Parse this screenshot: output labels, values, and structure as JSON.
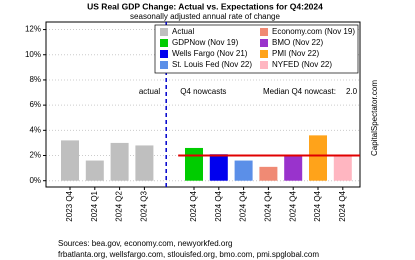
{
  "chart_data": {
    "type": "bar",
    "title": "US Real GDP Change: Actual vs. Expectations for Q4:2024",
    "subtitle": "seasonally adjusted annual rate of change",
    "categories": [
      "2023 Q4",
      "2024 Q1",
      "2024 Q2",
      "2024 Q3",
      null,
      "2024 Q4",
      "2024 Q4",
      "2024 Q4",
      "2024 Q4",
      "2024 Q4",
      "2024 Q4",
      "2024 Q4"
    ],
    "series": [
      {
        "name": "Actual",
        "color": "#bfbfbf",
        "values": [
          3.2,
          1.6,
          3.0,
          2.8,
          null,
          null,
          null,
          null,
          null,
          null,
          null,
          null
        ]
      },
      {
        "name": "GDPNow (Nov 19)",
        "color": "#00cc00",
        "values": [
          null,
          null,
          null,
          null,
          null,
          2.6,
          null,
          null,
          null,
          null,
          null,
          null
        ]
      },
      {
        "name": "Wells Fargo (Nov 21)",
        "color": "#0000ee",
        "values": [
          null,
          null,
          null,
          null,
          null,
          null,
          2.1,
          null,
          null,
          null,
          null,
          null
        ]
      },
      {
        "name": "St. Louis Fed (Nov 22)",
        "color": "#5b8fe8",
        "values": [
          null,
          null,
          null,
          null,
          null,
          null,
          null,
          1.6,
          null,
          null,
          null,
          null
        ]
      },
      {
        "name": "Economy.com (Nov 19)",
        "color": "#f08a74",
        "values": [
          null,
          null,
          null,
          null,
          null,
          null,
          null,
          null,
          1.1,
          null,
          null,
          null
        ]
      },
      {
        "name": "BMO (Nov 22)",
        "color": "#9933cc",
        "values": [
          null,
          null,
          null,
          null,
          null,
          null,
          null,
          null,
          null,
          2.0,
          null,
          null
        ]
      },
      {
        "name": "PMI (Nov 22)",
        "color": "#ffa31a",
        "values": [
          null,
          null,
          null,
          null,
          null,
          null,
          null,
          null,
          null,
          null,
          3.6,
          null
        ]
      },
      {
        "name": "NYFED (Nov 22)",
        "color": "#ffb6c1",
        "values": [
          null,
          null,
          null,
          null,
          null,
          null,
          null,
          null,
          null,
          null,
          null,
          2.0
        ]
      }
    ],
    "ylim": [
      -0.5,
      12.6
    ],
    "yticks": [
      {
        "value": 0,
        "label": "0%"
      },
      {
        "value": 2,
        "label": "2%"
      },
      {
        "value": 4,
        "label": "4%"
      },
      {
        "value": 6,
        "label": "6%"
      },
      {
        "value": 8,
        "label": "8%"
      },
      {
        "value": 10,
        "label": "10%"
      },
      {
        "value": 12,
        "label": "12%"
      }
    ],
    "grid": true,
    "annotations": [
      "actual",
      "Q4 nowcasts"
    ],
    "median": {
      "label": "Median Q4 nowcast:",
      "value": 2.0,
      "value_label": "2.0",
      "color": "#e00000"
    },
    "watermark": "CapitalSpectator.com",
    "sources": [
      "Sources: bea.gov, economy.com, newyorkfed.org",
      "frbatlanta.org, wellsfargo.com, stlouisfed.org, bmo.com, pmi.spglobal.com"
    ]
  }
}
